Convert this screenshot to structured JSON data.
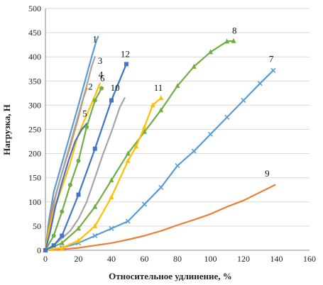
{
  "chart_data": {
    "type": "line",
    "title": "",
    "xlabel": "Относительное удлинение, %",
    "ylabel": "Нагрузка, Н",
    "xlim": [
      0,
      160
    ],
    "ylim": [
      0,
      500
    ],
    "xticks": [
      0,
      20,
      40,
      60,
      80,
      100,
      120,
      140,
      160
    ],
    "yticks": [
      0,
      50,
      100,
      150,
      200,
      250,
      300,
      350,
      400,
      450,
      500
    ],
    "grid": "horizontal",
    "legend": "none",
    "series": [
      {
        "name": "1",
        "color": "#5b9bd5",
        "marker": "none",
        "x": [
          0,
          2,
          5,
          10,
          15,
          20,
          24,
          28,
          31,
          32
        ],
        "y": [
          0,
          60,
          120,
          180,
          240,
          300,
          350,
          400,
          435,
          442
        ]
      },
      {
        "name": "2",
        "color": "#ed7d31",
        "marker": "none",
        "x": [
          0,
          2,
          5,
          10,
          15,
          20,
          23,
          25
        ],
        "y": [
          0,
          45,
          100,
          160,
          215,
          275,
          315,
          335
        ]
      },
      {
        "name": "3",
        "color": "#a5a5a5",
        "marker": "none",
        "x": [
          0,
          3,
          6,
          10,
          15,
          20,
          25,
          28,
          30
        ],
        "y": [
          0,
          50,
          110,
          160,
          220,
          280,
          340,
          380,
          400
        ]
      },
      {
        "name": "4",
        "color": "#ffc000",
        "marker": "none",
        "x": [
          0,
          2,
          5,
          10,
          15,
          20,
          25,
          30,
          33
        ],
        "y": [
          0,
          40,
          80,
          130,
          180,
          240,
          280,
          320,
          345
        ]
      },
      {
        "name": "5",
        "color": "#4472c4",
        "marker": "none",
        "x": [
          0,
          3,
          6,
          10,
          14,
          18,
          22,
          25
        ],
        "y": [
          0,
          40,
          90,
          140,
          185,
          225,
          250,
          262
        ]
      },
      {
        "name": "6",
        "color": "#70ad47",
        "marker": "circle",
        "x": [
          0,
          5,
          10,
          15,
          20,
          25,
          30,
          34
        ],
        "y": [
          0,
          30,
          80,
          135,
          185,
          255,
          310,
          335
        ]
      },
      {
        "name": "7",
        "color": "#5b9bd5",
        "marker": "cross",
        "x": [
          0,
          10,
          20,
          30,
          40,
          50,
          60,
          70,
          80,
          90,
          100,
          110,
          120,
          130,
          138
        ],
        "y": [
          0,
          5,
          15,
          30,
          45,
          60,
          95,
          130,
          175,
          205,
          240,
          275,
          310,
          345,
          372
        ]
      },
      {
        "name": "8",
        "color": "#70ad47",
        "marker": "triangle",
        "x": [
          0,
          10,
          20,
          30,
          40,
          50,
          60,
          70,
          80,
          90,
          100,
          110,
          114
        ],
        "y": [
          0,
          15,
          45,
          90,
          145,
          200,
          245,
          290,
          340,
          380,
          410,
          432,
          433
        ]
      },
      {
        "name": "9",
        "color": "#ed7d31",
        "marker": "none",
        "x": [
          0,
          10,
          20,
          30,
          40,
          50,
          60,
          70,
          80,
          90,
          100,
          110,
          120,
          130,
          139
        ],
        "y": [
          0,
          2,
          5,
          10,
          15,
          22,
          30,
          40,
          52,
          63,
          75,
          90,
          103,
          120,
          135
        ]
      },
      {
        "name": "10",
        "color": "#a5a5a5",
        "marker": "none",
        "x": [
          0,
          5,
          10,
          15,
          20,
          25,
          30,
          35,
          40,
          45,
          48
        ],
        "y": [
          0,
          10,
          25,
          40,
          65,
          100,
          150,
          200,
          245,
          295,
          315
        ]
      },
      {
        "name": "11",
        "color": "#ffc000",
        "marker": "triangle",
        "x": [
          0,
          10,
          20,
          30,
          40,
          50,
          55,
          60,
          65,
          70
        ],
        "y": [
          0,
          5,
          20,
          50,
          110,
          185,
          215,
          255,
          300,
          315
        ]
      },
      {
        "name": "12",
        "color": "#4472c4",
        "marker": "square",
        "x": [
          0,
          5,
          10,
          20,
          30,
          40,
          49
        ],
        "y": [
          0,
          10,
          30,
          115,
          210,
          310,
          385
        ]
      }
    ]
  }
}
